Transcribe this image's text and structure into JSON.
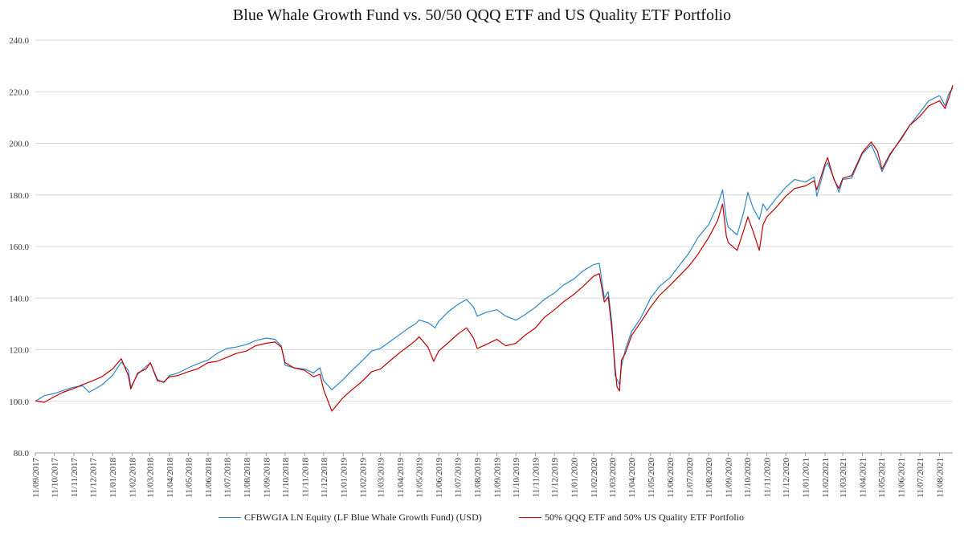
{
  "chart_data": {
    "type": "line",
    "title": "Blue Whale Growth Fund vs. 50/50 QQQ ETF and US Quality  ETF Portfolio",
    "xlabel": "",
    "ylabel": "",
    "ylim": [
      80,
      240
    ],
    "y_ticks": [
      "80.0",
      "100.0",
      "120.0",
      "140.0",
      "160.0",
      "180.0",
      "200.0",
      "220.0",
      "240.0"
    ],
    "x_ticks": [
      "11/09/2017",
      "11/10/2017",
      "11/11/2017",
      "11/12/2017",
      "11/01/2018",
      "11/02/2018",
      "11/03/2018",
      "11/04/2018",
      "11/05/2018",
      "11/06/2018",
      "11/07/2018",
      "11/08/2018",
      "11/09/2018",
      "11/10/2018",
      "11/11/2018",
      "11/12/2018",
      "11/01/2019",
      "11/02/2019",
      "11/03/2019",
      "11/04/2019",
      "11/05/2019",
      "11/06/2019",
      "11/07/2019",
      "11/08/2019",
      "11/09/2019",
      "11/10/2019",
      "11/11/2019",
      "11/12/2019",
      "11/01/2020",
      "11/02/2020",
      "11/03/2020",
      "11/04/2020",
      "11/05/2020",
      "11/06/2020",
      "11/07/2020",
      "11/08/2020",
      "11/09/2020",
      "11/10/2020",
      "11/11/2020",
      "11/12/2020",
      "11/01/2021",
      "11/02/2021",
      "11/03/2021",
      "11/04/2021",
      "11/05/2021",
      "11/06/2021",
      "11/07/2021",
      "11/08/2021"
    ],
    "grid": true,
    "legend_position": "bottom",
    "x_last": "2021-09-01",
    "series": [
      {
        "name": "CFBWGIA LN Equity (LF Blue Whale Growth Fund) (USD)",
        "color": "#2e86c8",
        "points": [
          [
            "2017-09-11",
            100.0
          ],
          [
            "2017-09-25",
            102.2
          ],
          [
            "2017-10-11",
            103.0
          ],
          [
            "2017-10-25",
            104.2
          ],
          [
            "2017-11-11",
            105.5
          ],
          [
            "2017-11-25",
            106.0
          ],
          [
            "2017-12-05",
            103.5
          ],
          [
            "2017-12-11",
            104.3
          ],
          [
            "2017-12-25",
            106.3
          ],
          [
            "2018-01-11",
            110.0
          ],
          [
            "2018-01-25",
            115.2
          ],
          [
            "2018-02-05",
            112.0
          ],
          [
            "2018-02-09",
            105.5
          ],
          [
            "2018-02-20",
            110.5
          ],
          [
            "2018-03-05",
            113.5
          ],
          [
            "2018-03-12",
            114.8
          ],
          [
            "2018-03-23",
            108.5
          ],
          [
            "2018-04-02",
            107.2
          ],
          [
            "2018-04-11",
            110.0
          ],
          [
            "2018-04-25",
            111.0
          ],
          [
            "2018-05-11",
            113.0
          ],
          [
            "2018-05-25",
            114.5
          ],
          [
            "2018-06-11",
            116.0
          ],
          [
            "2018-06-25",
            118.5
          ],
          [
            "2018-07-11",
            120.5
          ],
          [
            "2018-07-25",
            121.0
          ],
          [
            "2018-08-11",
            122.0
          ],
          [
            "2018-08-25",
            123.5
          ],
          [
            "2018-09-11",
            124.5
          ],
          [
            "2018-09-25",
            124.0
          ],
          [
            "2018-10-05",
            121.5
          ],
          [
            "2018-10-11",
            114.0
          ],
          [
            "2018-10-25",
            113.0
          ],
          [
            "2018-11-11",
            112.5
          ],
          [
            "2018-11-25",
            111.0
          ],
          [
            "2018-12-05",
            113.0
          ],
          [
            "2018-12-11",
            108.0
          ],
          [
            "2018-12-24",
            104.5
          ],
          [
            "2019-01-11",
            108.5
          ],
          [
            "2019-01-25",
            112.0
          ],
          [
            "2019-02-11",
            116.0
          ],
          [
            "2019-02-25",
            119.5
          ],
          [
            "2019-03-11",
            120.5
          ],
          [
            "2019-03-25",
            123.0
          ],
          [
            "2019-04-11",
            126.0
          ],
          [
            "2019-04-25",
            128.5
          ],
          [
            "2019-05-05",
            130.0
          ],
          [
            "2019-05-11",
            131.5
          ],
          [
            "2019-05-25",
            130.5
          ],
          [
            "2019-06-05",
            128.5
          ],
          [
            "2019-06-11",
            131.0
          ],
          [
            "2019-06-25",
            134.5
          ],
          [
            "2019-07-11",
            137.5
          ],
          [
            "2019-07-25",
            139.5
          ],
          [
            "2019-08-05",
            136.5
          ],
          [
            "2019-08-11",
            133.0
          ],
          [
            "2019-08-25",
            134.5
          ],
          [
            "2019-09-11",
            135.5
          ],
          [
            "2019-09-25",
            133.0
          ],
          [
            "2019-10-11",
            131.5
          ],
          [
            "2019-10-25",
            133.5
          ],
          [
            "2019-11-11",
            136.5
          ],
          [
            "2019-11-25",
            139.5
          ],
          [
            "2019-12-11",
            142.0
          ],
          [
            "2019-12-25",
            145.0
          ],
          [
            "2020-01-11",
            147.5
          ],
          [
            "2020-01-25",
            150.5
          ],
          [
            "2020-02-11",
            153.0
          ],
          [
            "2020-02-20",
            153.5
          ],
          [
            "2020-02-28",
            140.0
          ],
          [
            "2020-03-05",
            142.5
          ],
          [
            "2020-03-11",
            130.0
          ],
          [
            "2020-03-16",
            110.0
          ],
          [
            "2020-03-19",
            108.5
          ],
          [
            "2020-03-23",
            106.5
          ],
          [
            "2020-03-26",
            113.5
          ],
          [
            "2020-04-01",
            120.0
          ],
          [
            "2020-04-11",
            127.0
          ],
          [
            "2020-04-25",
            132.0
          ],
          [
            "2020-05-11",
            140.0
          ],
          [
            "2020-05-25",
            144.5
          ],
          [
            "2020-06-11",
            148.0
          ],
          [
            "2020-06-25",
            152.5
          ],
          [
            "2020-07-11",
            157.5
          ],
          [
            "2020-07-25",
            163.5
          ],
          [
            "2020-08-11",
            168.5
          ],
          [
            "2020-08-25",
            176.0
          ],
          [
            "2020-09-02",
            182.0
          ],
          [
            "2020-09-08",
            170.5
          ],
          [
            "2020-09-11",
            167.5
          ],
          [
            "2020-09-25",
            164.5
          ],
          [
            "2020-10-05",
            173.0
          ],
          [
            "2020-10-12",
            181.0
          ],
          [
            "2020-10-20",
            175.0
          ],
          [
            "2020-10-30",
            170.5
          ],
          [
            "2020-11-05",
            176.5
          ],
          [
            "2020-11-11",
            174.0
          ],
          [
            "2020-11-25",
            178.5
          ],
          [
            "2020-12-11",
            183.0
          ],
          [
            "2020-12-25",
            186.0
          ],
          [
            "2021-01-11",
            185.0
          ],
          [
            "2021-01-25",
            187.0
          ],
          [
            "2021-01-29",
            179.5
          ],
          [
            "2021-02-11",
            191.0
          ],
          [
            "2021-02-15",
            192.5
          ],
          [
            "2021-02-25",
            186.5
          ],
          [
            "2021-03-05",
            181.0
          ],
          [
            "2021-03-11",
            186.0
          ],
          [
            "2021-03-25",
            186.5
          ],
          [
            "2021-04-11",
            196.0
          ],
          [
            "2021-04-25",
            199.5
          ],
          [
            "2021-05-05",
            194.0
          ],
          [
            "2021-05-12",
            189.0
          ],
          [
            "2021-05-25",
            195.5
          ],
          [
            "2021-06-11",
            202.0
          ],
          [
            "2021-06-25",
            207.0
          ],
          [
            "2021-07-11",
            212.0
          ],
          [
            "2021-07-25",
            216.5
          ],
          [
            "2021-08-11",
            218.5
          ],
          [
            "2021-08-20",
            214.5
          ],
          [
            "2021-08-25",
            219.0
          ],
          [
            "2021-09-01",
            221.5
          ]
        ]
      },
      {
        "name": "50% QQQ ETF and 50% US Quality ETF Portfolio",
        "color": "#c00000",
        "points": [
          [
            "2017-09-11",
            100.2
          ],
          [
            "2017-09-25",
            99.6
          ],
          [
            "2017-10-11",
            101.8
          ],
          [
            "2017-10-25",
            103.5
          ],
          [
            "2017-11-11",
            105.0
          ],
          [
            "2017-11-25",
            106.5
          ],
          [
            "2017-12-11",
            108.0
          ],
          [
            "2017-12-25",
            109.5
          ],
          [
            "2018-01-11",
            112.5
          ],
          [
            "2018-01-25",
            116.5
          ],
          [
            "2018-02-05",
            110.0
          ],
          [
            "2018-02-09",
            104.8
          ],
          [
            "2018-02-20",
            111.0
          ],
          [
            "2018-03-05",
            112.5
          ],
          [
            "2018-03-12",
            115.0
          ],
          [
            "2018-03-23",
            108.0
          ],
          [
            "2018-04-02",
            107.5
          ],
          [
            "2018-04-11",
            109.5
          ],
          [
            "2018-04-25",
            110.0
          ],
          [
            "2018-05-11",
            111.5
          ],
          [
            "2018-05-25",
            112.5
          ],
          [
            "2018-06-11",
            115.0
          ],
          [
            "2018-06-25",
            115.5
          ],
          [
            "2018-07-11",
            117.0
          ],
          [
            "2018-07-25",
            118.5
          ],
          [
            "2018-08-11",
            119.5
          ],
          [
            "2018-08-25",
            121.5
          ],
          [
            "2018-09-11",
            122.5
          ],
          [
            "2018-09-25",
            123.0
          ],
          [
            "2018-10-05",
            121.0
          ],
          [
            "2018-10-11",
            115.0
          ],
          [
            "2018-10-25",
            113.0
          ],
          [
            "2018-11-11",
            112.0
          ],
          [
            "2018-11-25",
            109.5
          ],
          [
            "2018-12-05",
            110.5
          ],
          [
            "2018-12-11",
            104.5
          ],
          [
            "2018-12-24",
            96.2
          ],
          [
            "2019-01-11",
            101.5
          ],
          [
            "2019-01-25",
            104.5
          ],
          [
            "2019-02-11",
            108.0
          ],
          [
            "2019-02-25",
            111.5
          ],
          [
            "2019-03-11",
            112.5
          ],
          [
            "2019-03-25",
            115.5
          ],
          [
            "2019-04-11",
            119.0
          ],
          [
            "2019-04-25",
            121.5
          ],
          [
            "2019-05-05",
            123.5
          ],
          [
            "2019-05-11",
            125.0
          ],
          [
            "2019-05-25",
            121.0
          ],
          [
            "2019-06-03",
            115.5
          ],
          [
            "2019-06-11",
            119.5
          ],
          [
            "2019-06-25",
            122.5
          ],
          [
            "2019-07-11",
            126.0
          ],
          [
            "2019-07-25",
            128.5
          ],
          [
            "2019-08-05",
            124.5
          ],
          [
            "2019-08-11",
            120.5
          ],
          [
            "2019-08-25",
            122.0
          ],
          [
            "2019-09-11",
            124.0
          ],
          [
            "2019-09-25",
            121.5
          ],
          [
            "2019-10-11",
            122.5
          ],
          [
            "2019-10-25",
            125.5
          ],
          [
            "2019-11-11",
            128.5
          ],
          [
            "2019-11-25",
            132.5
          ],
          [
            "2019-12-11",
            135.5
          ],
          [
            "2019-12-25",
            138.5
          ],
          [
            "2020-01-11",
            141.5
          ],
          [
            "2020-01-25",
            144.5
          ],
          [
            "2020-02-11",
            148.5
          ],
          [
            "2020-02-20",
            149.5
          ],
          [
            "2020-02-28",
            138.5
          ],
          [
            "2020-03-05",
            140.5
          ],
          [
            "2020-03-11",
            127.5
          ],
          [
            "2020-03-16",
            113.0
          ],
          [
            "2020-03-19",
            105.5
          ],
          [
            "2020-03-23",
            104.0
          ],
          [
            "2020-03-26",
            116.0
          ],
          [
            "2020-04-01",
            118.5
          ],
          [
            "2020-04-11",
            125.5
          ],
          [
            "2020-04-25",
            130.5
          ],
          [
            "2020-05-11",
            136.5
          ],
          [
            "2020-05-25",
            141.0
          ],
          [
            "2020-06-11",
            145.0
          ],
          [
            "2020-06-25",
            148.5
          ],
          [
            "2020-07-11",
            152.5
          ],
          [
            "2020-07-25",
            157.0
          ],
          [
            "2020-08-11",
            163.5
          ],
          [
            "2020-08-25",
            170.0
          ],
          [
            "2020-09-02",
            176.5
          ],
          [
            "2020-09-08",
            164.0
          ],
          [
            "2020-09-11",
            161.5
          ],
          [
            "2020-09-25",
            158.5
          ],
          [
            "2020-10-05",
            166.0
          ],
          [
            "2020-10-12",
            171.5
          ],
          [
            "2020-10-20",
            166.0
          ],
          [
            "2020-10-30",
            158.5
          ],
          [
            "2020-11-05",
            168.5
          ],
          [
            "2020-11-11",
            171.5
          ],
          [
            "2020-11-25",
            175.0
          ],
          [
            "2020-12-11",
            179.5
          ],
          [
            "2020-12-25",
            182.5
          ],
          [
            "2021-01-11",
            183.5
          ],
          [
            "2021-01-25",
            185.5
          ],
          [
            "2021-01-29",
            182.0
          ],
          [
            "2021-02-11",
            192.0
          ],
          [
            "2021-02-15",
            194.5
          ],
          [
            "2021-02-25",
            186.0
          ],
          [
            "2021-03-05",
            182.5
          ],
          [
            "2021-03-11",
            186.5
          ],
          [
            "2021-03-25",
            187.5
          ],
          [
            "2021-04-11",
            196.5
          ],
          [
            "2021-04-25",
            200.5
          ],
          [
            "2021-05-05",
            197.0
          ],
          [
            "2021-05-12",
            190.0
          ],
          [
            "2021-05-25",
            196.0
          ],
          [
            "2021-06-11",
            201.5
          ],
          [
            "2021-06-25",
            207.0
          ],
          [
            "2021-07-11",
            210.5
          ],
          [
            "2021-07-25",
            214.5
          ],
          [
            "2021-08-11",
            216.5
          ],
          [
            "2021-08-20",
            213.5
          ],
          [
            "2021-08-25",
            217.0
          ],
          [
            "2021-09-01",
            222.5
          ]
        ]
      }
    ]
  }
}
